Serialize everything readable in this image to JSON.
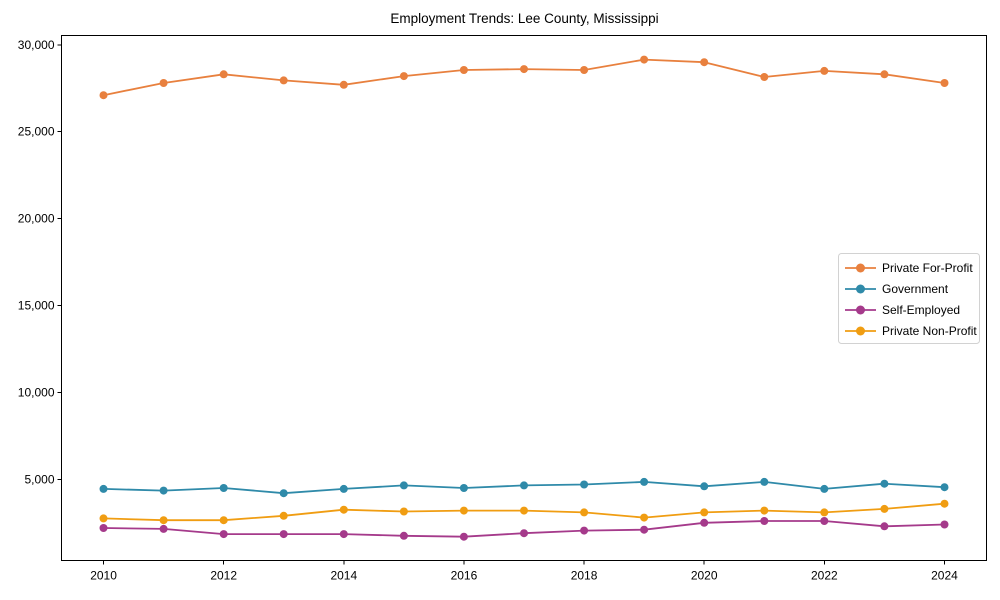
{
  "figure": {
    "title": "Employment Trends: Lee County, Mississippi"
  },
  "chart_data": {
    "type": "line",
    "title": "Employment Trends: Lee County, Mississippi",
    "xlabel": "",
    "ylabel": "",
    "grid": false,
    "legend_position": "center right",
    "x": [
      2010,
      2011,
      2012,
      2013,
      2014,
      2015,
      2016,
      2017,
      2018,
      2019,
      2020,
      2021,
      2022,
      2023,
      2024
    ],
    "x_ticks": [
      2010,
      2012,
      2014,
      2016,
      2018,
      2020,
      2022,
      2024
    ],
    "y_ticks": [
      5000,
      10000,
      15000,
      20000,
      25000,
      30000
    ],
    "y_tick_labels": [
      "5,000",
      "10,000",
      "15,000",
      "20,000",
      "25,000",
      "30,000"
    ],
    "xlim": [
      2009.3,
      2024.7
    ],
    "ylim": [
      330,
      30535
    ],
    "series": [
      {
        "name": "Private For-Profit",
        "color": "#e8803e",
        "values": [
          27100,
          27800,
          28300,
          27950,
          27700,
          28200,
          28550,
          28600,
          28550,
          29150,
          29000,
          28150,
          28500,
          28300,
          27800
        ]
      },
      {
        "name": "Government",
        "color": "#2f8aa9",
        "values": [
          4450,
          4350,
          4500,
          4200,
          4450,
          4650,
          4500,
          4650,
          4700,
          4850,
          4600,
          4850,
          4450,
          4750,
          4550
        ]
      },
      {
        "name": "Self-Employed",
        "color": "#a53a8b",
        "values": [
          2200,
          2150,
          1850,
          1850,
          1850,
          1750,
          1700,
          1900,
          2050,
          2100,
          2500,
          2600,
          2600,
          2300,
          2400
        ]
      },
      {
        "name": "Private Non-Profit",
        "color": "#f09d12",
        "values": [
          2750,
          2650,
          2650,
          2900,
          3250,
          3150,
          3200,
          3200,
          3100,
          2800,
          3100,
          3200,
          3100,
          3300,
          3600
        ]
      }
    ]
  }
}
